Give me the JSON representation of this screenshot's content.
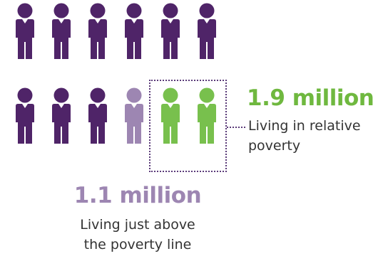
{
  "colors": {
    "in_poverty": "#4f2468",
    "just_above": "#9d86b2",
    "relative": "#78c04d",
    "box_line": "#5a3a78"
  },
  "figures": {
    "icon": "person-icon",
    "rows": [
      [
        "in_poverty",
        "in_poverty",
        "in_poverty",
        "in_poverty",
        "in_poverty",
        "in_poverty"
      ],
      [
        "in_poverty",
        "in_poverty",
        "in_poverty",
        "just_above",
        "relative",
        "relative"
      ]
    ]
  },
  "relative_poverty": {
    "number": "1.9 million",
    "line1": "Living in relative",
    "line2": "poverty"
  },
  "above_line": {
    "number": "1.1 million",
    "line1": "Living just above",
    "line2": "the poverty line"
  }
}
